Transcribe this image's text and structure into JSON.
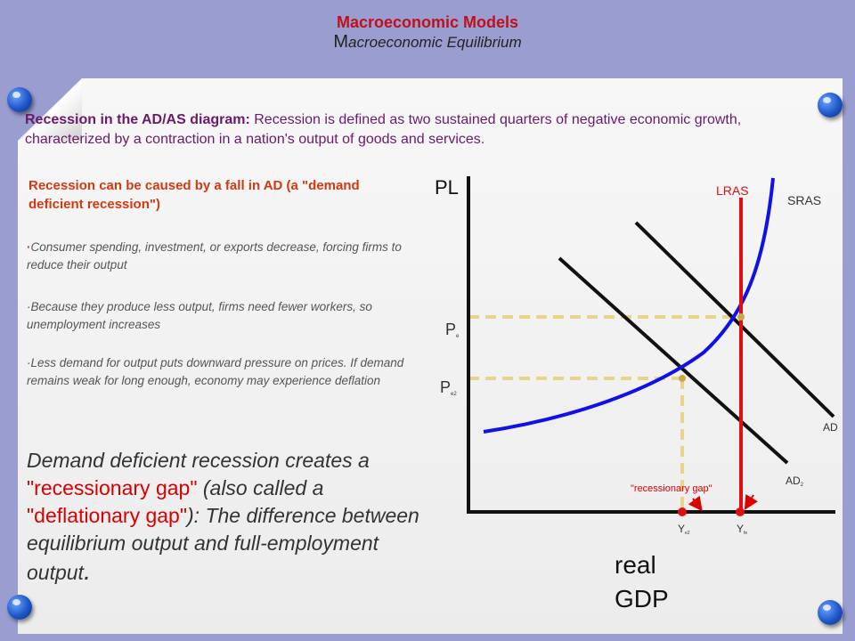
{
  "title": {
    "main": "Macroeconomic Models",
    "sub_initial": "M",
    "sub_rest": "acroeconomic Equilibrium"
  },
  "intro": {
    "lead": "Recession in the AD/AS diagram:",
    "text": " Recession is defined as two sustained quarters of negative economic growth, characterized by a contraction in a nation's output of goods and services."
  },
  "causes": {
    "heading": "Recession can be caused by a fall in AD (a \"demand deficient recession\")",
    "bullets": [
      "Consumer spending, investment, or exports decrease, forcing firms to reduce their output",
      "Because they produce less output, firms need fewer workers, so unemployment increases",
      "Less demand for output puts downward pressure on prices. If demand remains weak for long enough, economy may experience deflation"
    ]
  },
  "gap_text": {
    "part1": "Demand deficient recession creates a ",
    "term1": "\"recessionary gap\"",
    "part2": " (also called a ",
    "term2": "\"deflationary gap\"",
    "part3": "): The difference between equilibrium output and full-employment output",
    "end": "."
  },
  "diagram": {
    "y_axis_label": "PL",
    "x_axis_label_line1": "real",
    "x_axis_label_line2": "GDP",
    "lras_label": "LRAS",
    "sras_label": "SRAS",
    "ad_label": "AD",
    "ad2_label": "AD",
    "ad2_sub": "2",
    "pe_label": "P",
    "pe_sub": "e",
    "pe2_label": "P",
    "pe2_sub": "e2",
    "ye2_label": "Y",
    "ye2_sub": "e2",
    "yfe_label": "Y",
    "yfe_sub": "fe",
    "gap_label": "\"recessionary gap\"",
    "colors": {
      "lras": "#e01010",
      "sras": "#1010e8",
      "ad": "#111111",
      "dashed": "#e8d48a",
      "axis": "#111111",
      "gap_label": "#d80000"
    }
  }
}
